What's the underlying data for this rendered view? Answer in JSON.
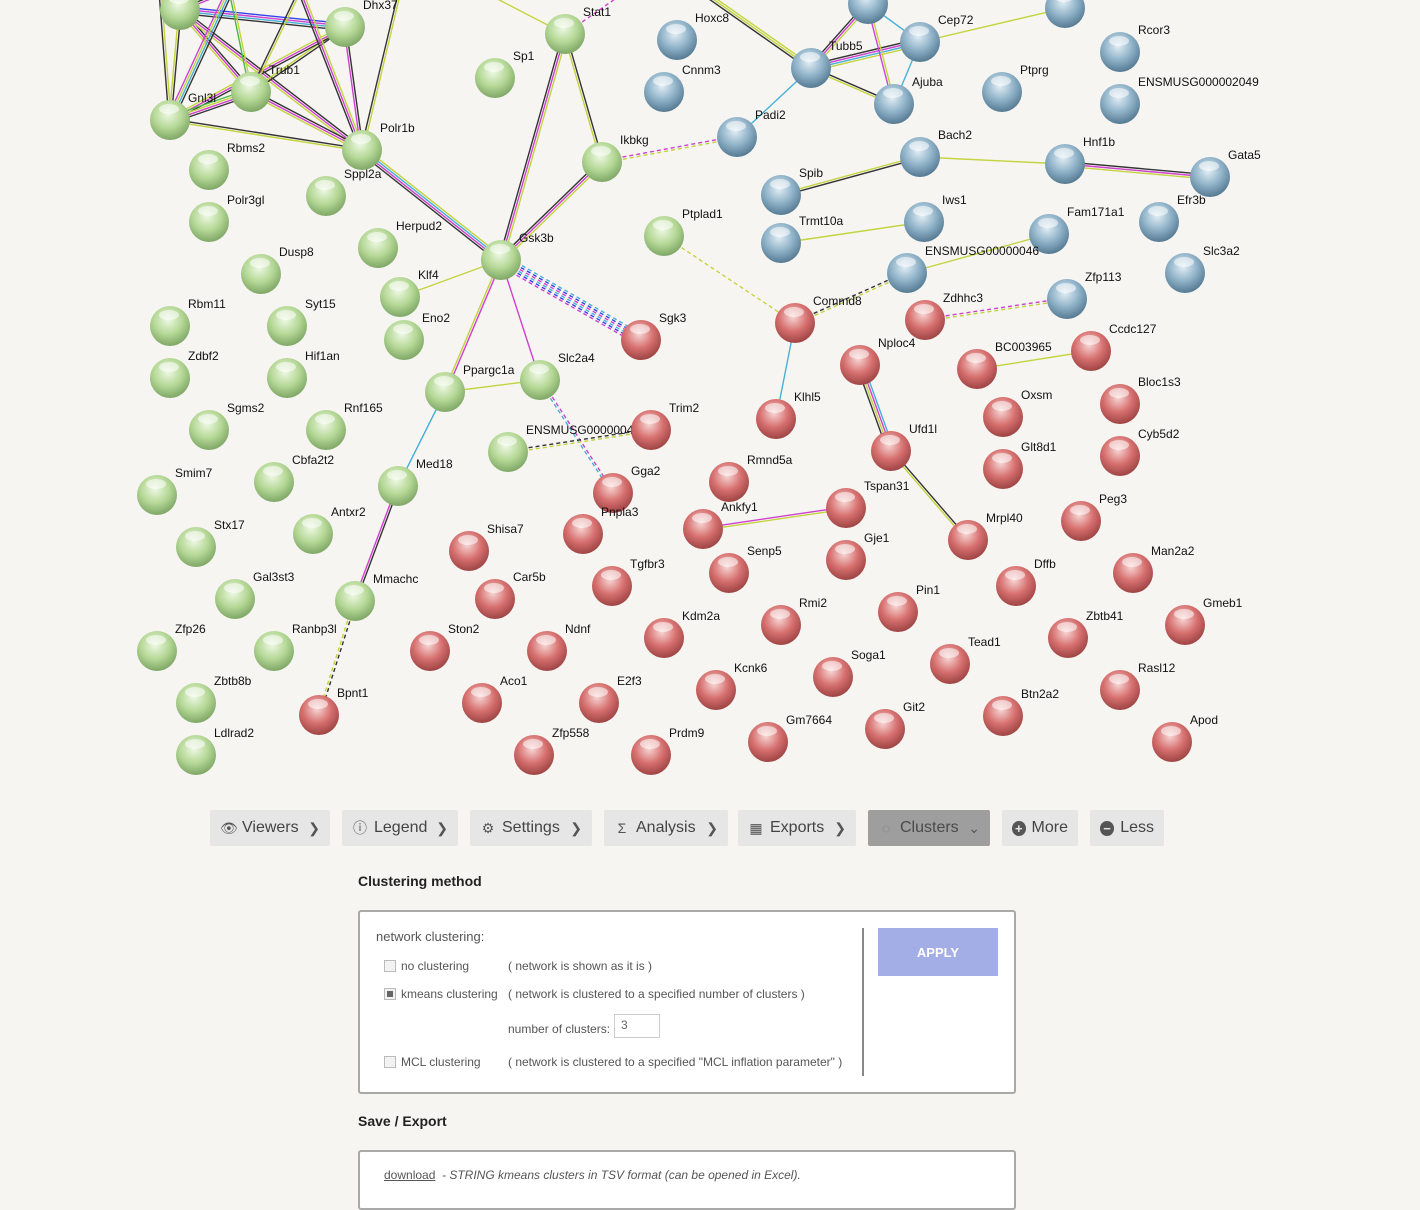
{
  "colors": {
    "green_cluster": "#b5d896",
    "blue_cluster": "#8fb2c8",
    "red_cluster": "#d6706f",
    "apply": "#a3aee6",
    "active_button": "#9e9e9e"
  },
  "network": {
    "nodes": [
      {
        "label": "Dhx37",
        "cluster": "green"
      },
      {
        "label": "Trub1",
        "cluster": "green"
      },
      {
        "label": "Gnl3l",
        "cluster": "green"
      },
      {
        "label": "Polr1b",
        "cluster": "green"
      },
      {
        "label": "Sppl2a",
        "cluster": "green"
      },
      {
        "label": "Rbms2",
        "cluster": "green"
      },
      {
        "label": "Polr3gl",
        "cluster": "green"
      },
      {
        "label": "Stat1",
        "cluster": "green"
      },
      {
        "label": "Sp1",
        "cluster": "green"
      },
      {
        "label": "Ikbkg",
        "cluster": "green"
      },
      {
        "label": "Herpud2",
        "cluster": "green"
      },
      {
        "label": "Gsk3b",
        "cluster": "green"
      },
      {
        "label": "Dusp8",
        "cluster": "green"
      },
      {
        "label": "Klf4",
        "cluster": "green"
      },
      {
        "label": "Eno2",
        "cluster": "green"
      },
      {
        "label": "Rbm11",
        "cluster": "green"
      },
      {
        "label": "Syt15",
        "cluster": "green"
      },
      {
        "label": "Zdbf2",
        "cluster": "green"
      },
      {
        "label": "Hif1an",
        "cluster": "green"
      },
      {
        "label": "Ppargc1a",
        "cluster": "green"
      },
      {
        "label": "Slc2a4",
        "cluster": "green"
      },
      {
        "label": "Ptplad1",
        "cluster": "green"
      },
      {
        "label": "Sgms2",
        "cluster": "green"
      },
      {
        "label": "Rnf165",
        "cluster": "green"
      },
      {
        "label": "ENSMUSG0000004",
        "cluster": "green"
      },
      {
        "label": "Smim7",
        "cluster": "green"
      },
      {
        "label": "Cbfa2t2",
        "cluster": "green"
      },
      {
        "label": "Med18",
        "cluster": "green"
      },
      {
        "label": "Stx17",
        "cluster": "green"
      },
      {
        "label": "Antxr2",
        "cluster": "green"
      },
      {
        "label": "Gal3st3",
        "cluster": "green"
      },
      {
        "label": "Mmachc",
        "cluster": "green"
      },
      {
        "label": "Zfp26",
        "cluster": "green"
      },
      {
        "label": "Ranbp3l",
        "cluster": "green"
      },
      {
        "label": "Zbtb8b",
        "cluster": "green"
      },
      {
        "label": "Ldlrad2",
        "cluster": "green"
      },
      {
        "label": "Hoxc8",
        "cluster": "blue"
      },
      {
        "label": "Cep72",
        "cluster": "blue"
      },
      {
        "label": "Tubb5",
        "cluster": "blue"
      },
      {
        "label": "Cnnm3",
        "cluster": "blue"
      },
      {
        "label": "Ajuba",
        "cluster": "blue"
      },
      {
        "label": "Ptprg",
        "cluster": "blue"
      },
      {
        "label": "Rcor3",
        "cluster": "blue"
      },
      {
        "label": "ENSMUSG000002049",
        "cluster": "blue"
      },
      {
        "label": "Padi2",
        "cluster": "blue"
      },
      {
        "label": "Bach2",
        "cluster": "blue"
      },
      {
        "label": "Hnf1b",
        "cluster": "blue"
      },
      {
        "label": "Gata5",
        "cluster": "blue"
      },
      {
        "label": "Spib",
        "cluster": "blue"
      },
      {
        "label": "Iws1",
        "cluster": "blue"
      },
      {
        "label": "Trmt10a",
        "cluster": "blue"
      },
      {
        "label": "Fam171a1",
        "cluster": "blue"
      },
      {
        "label": "Efr3b",
        "cluster": "blue"
      },
      {
        "label": "ENSMUSG00000046",
        "cluster": "blue"
      },
      {
        "label": "Slc3a2",
        "cluster": "blue"
      },
      {
        "label": "Zfp113",
        "cluster": "blue"
      },
      {
        "label": "Sgk3",
        "cluster": "red"
      },
      {
        "label": "Commd8",
        "cluster": "red"
      },
      {
        "label": "Zdhhc3",
        "cluster": "red"
      },
      {
        "label": "Ccdc127",
        "cluster": "red"
      },
      {
        "label": "Nploc4",
        "cluster": "red"
      },
      {
        "label": "BC003965",
        "cluster": "red"
      },
      {
        "label": "Bloc1s3",
        "cluster": "red"
      },
      {
        "label": "Oxsm",
        "cluster": "red"
      },
      {
        "label": "Klhl5",
        "cluster": "red"
      },
      {
        "label": "Trim2",
        "cluster": "red"
      },
      {
        "label": "Ufd1l",
        "cluster": "red"
      },
      {
        "label": "Cyb5d2",
        "cluster": "red"
      },
      {
        "label": "Glt8d1",
        "cluster": "red"
      },
      {
        "label": "Rmnd5a",
        "cluster": "red"
      },
      {
        "label": "Gga2",
        "cluster": "red"
      },
      {
        "label": "Tspan31",
        "cluster": "red"
      },
      {
        "label": "Peg3",
        "cluster": "red"
      },
      {
        "label": "Ankfy1",
        "cluster": "red"
      },
      {
        "label": "Pnpla3",
        "cluster": "red"
      },
      {
        "label": "Shisa7",
        "cluster": "red"
      },
      {
        "label": "Mrpl40",
        "cluster": "red"
      },
      {
        "label": "Gje1",
        "cluster": "red"
      },
      {
        "label": "Senp5",
        "cluster": "red"
      },
      {
        "label": "Tgfbr3",
        "cluster": "red"
      },
      {
        "label": "Car5b",
        "cluster": "red"
      },
      {
        "label": "Dffb",
        "cluster": "red"
      },
      {
        "label": "Man2a2",
        "cluster": "red"
      },
      {
        "label": "Pin1",
        "cluster": "red"
      },
      {
        "label": "Rmi2",
        "cluster": "red"
      },
      {
        "label": "Kdm2a",
        "cluster": "red"
      },
      {
        "label": "Zbtb41",
        "cluster": "red"
      },
      {
        "label": "Gmeb1",
        "cluster": "red"
      },
      {
        "label": "Ston2",
        "cluster": "red"
      },
      {
        "label": "Ndnf",
        "cluster": "red"
      },
      {
        "label": "Tead1",
        "cluster": "red"
      },
      {
        "label": "Soga1",
        "cluster": "red"
      },
      {
        "label": "Kcnk6",
        "cluster": "red"
      },
      {
        "label": "Rasl12",
        "cluster": "red"
      },
      {
        "label": "Aco1",
        "cluster": "red"
      },
      {
        "label": "E2f3",
        "cluster": "red"
      },
      {
        "label": "Git2",
        "cluster": "red"
      },
      {
        "label": "Btn2a2",
        "cluster": "red"
      },
      {
        "label": "Bpnt1",
        "cluster": "red"
      },
      {
        "label": "Gm7664",
        "cluster": "red"
      },
      {
        "label": "Apod",
        "cluster": "red"
      },
      {
        "label": "Zfp558",
        "cluster": "red"
      },
      {
        "label": "Prdm9",
        "cluster": "red"
      }
    ]
  },
  "toolbar": {
    "buttons": [
      {
        "label": "Viewers",
        "icon": "eye-icon"
      },
      {
        "label": "Legend",
        "icon": "info-icon"
      },
      {
        "label": "Settings",
        "icon": "gear-icon"
      },
      {
        "label": "Analysis",
        "icon": "sigma-icon"
      },
      {
        "label": "Exports",
        "icon": "table-icon"
      },
      {
        "label": "Clusters",
        "icon": "clusters-icon",
        "active": true
      },
      {
        "label": "More",
        "icon": "plus-circle-icon"
      },
      {
        "label": "Less",
        "icon": "minus-circle-icon"
      }
    ]
  },
  "clustering": {
    "heading": "Clustering method",
    "section_label": "network clustering:",
    "options": [
      {
        "label": "no clustering",
        "desc": "( network is shown as it is )",
        "checked": false
      },
      {
        "label": "kmeans clustering",
        "desc": "( network is clustered to a specified number of clusters )",
        "checked": true
      },
      {
        "label": "MCL clustering",
        "desc": "( network is clustered to a specified \"MCL inflation parameter\" )",
        "checked": false
      }
    ],
    "num_clusters_label": "number of clusters:",
    "num_clusters_value": "3",
    "apply_label": "APPLY"
  },
  "export": {
    "heading": "Save / Export",
    "download_label": "download",
    "download_desc": "- STRING kmeans clusters in TSV format (can be opened in Excel)."
  }
}
